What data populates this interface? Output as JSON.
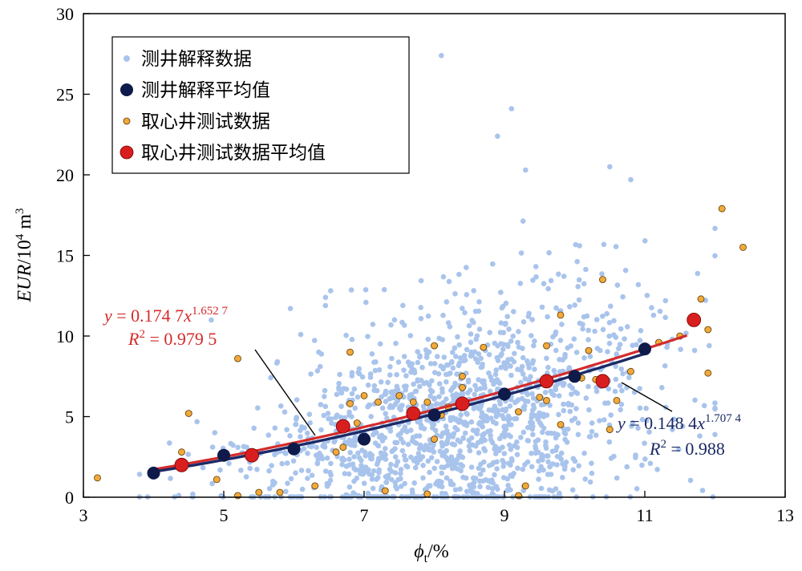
{
  "chart_data": {
    "type": "scatter",
    "xlabel_main": "ϕ",
    "xlabel_sub": "t",
    "xlabel_unit": "/%",
    "ylabel_main": "EUR",
    "ylabel_unit_pre": "/10",
    "ylabel_unit_exp": "4",
    "ylabel_unit_post": " m",
    "ylabel_unit_exp2": "3",
    "xlim": [
      3,
      13
    ],
    "ylim": [
      0,
      30
    ],
    "xticks": [
      3,
      5,
      7,
      9,
      11,
      13
    ],
    "yticks": [
      0,
      5,
      10,
      15,
      20,
      25,
      30
    ],
    "grid": false,
    "legend_position": "top-left",
    "legend": [
      {
        "label": "测井解释数据",
        "marker": "small-light-blue"
      },
      {
        "label": "测井解释平均值",
        "marker": "large-navy"
      },
      {
        "label": "取心井测试数据",
        "marker": "small-orange"
      },
      {
        "label": "取心井测试数据平均值",
        "marker": "large-red"
      }
    ],
    "colors": {
      "log_data": "#a9c4ec",
      "log_mean": "#0d1a4a",
      "core_data": "#f2a93b",
      "core_data_edge": "#5a3a00",
      "core_mean": "#d81e1e",
      "fit_log": "#1b2a66",
      "fit_core": "#d42b2b"
    },
    "series": [
      {
        "name": "测井解释平均值",
        "x": [
          4.0,
          5.0,
          6.0,
          7.0,
          8.0,
          9.0,
          10.0,
          11.0
        ],
        "y": [
          1.5,
          2.6,
          3.0,
          3.6,
          5.1,
          6.4,
          7.5,
          9.2
        ]
      },
      {
        "name": "取心井测试数据平均值",
        "x": [
          4.4,
          5.4,
          6.7,
          7.7,
          8.4,
          9.6,
          10.4,
          11.7
        ],
        "y": [
          2.0,
          2.6,
          4.4,
          5.2,
          5.8,
          7.2,
          7.2,
          11.0
        ]
      },
      {
        "name": "取心井测试数据",
        "x": [
          3.2,
          4.4,
          4.5,
          4.9,
          5.2,
          5.2,
          5.5,
          5.8,
          6.3,
          6.6,
          6.7,
          6.8,
          6.8,
          6.9,
          7.0,
          7.2,
          7.3,
          7.5,
          7.7,
          7.9,
          7.9,
          8.0,
          8.0,
          8.1,
          8.2,
          8.4,
          8.4,
          8.7,
          9.0,
          9.2,
          9.2,
          9.3,
          9.5,
          9.6,
          9.6,
          9.8,
          9.8,
          10.1,
          10.2,
          10.3,
          10.4,
          10.5,
          10.6,
          10.8,
          11.0,
          11.2,
          11.5,
          11.8,
          11.9,
          11.9,
          12.1,
          12.4
        ],
        "y": [
          1.2,
          2.8,
          5.2,
          1.1,
          8.6,
          0.1,
          0.3,
          0.3,
          0.7,
          2.8,
          3.1,
          9.0,
          5.8,
          4.6,
          6.3,
          5.9,
          0.4,
          6.3,
          5.9,
          5.9,
          0.2,
          9.4,
          3.6,
          5.1,
          5.6,
          7.5,
          6.8,
          9.3,
          6.2,
          5.3,
          0.1,
          0.7,
          6.2,
          9.4,
          6.0,
          4.5,
          11.3,
          7.4,
          9.1,
          7.3,
          13.5,
          4.2,
          6.0,
          7.8,
          9.3,
          9.6,
          10.0,
          12.3,
          10.4,
          7.7,
          17.9,
          15.5
        ]
      }
    ],
    "fits": [
      {
        "series": "取心井测试数据平均值",
        "coef": 0.1747,
        "exp": 1.6527,
        "x_range": [
          4.0,
          11.6
        ],
        "eq_y": "y",
        "eq_mid": " = 0.174 7",
        "eq_x": "x",
        "eq_exp": "1.652 7",
        "r2_r": "R",
        "r2_sup": "2",
        "r2_val": " = 0.979 5"
      },
      {
        "series": "测井解释平均值",
        "coef": 0.1484,
        "exp": 1.7074,
        "x_range": [
          4.0,
          11.0
        ],
        "eq_y": "y",
        "eq_mid": " = 0.148 4",
        "eq_x": "x",
        "eq_exp": "1.707 4",
        "r2_r": "R",
        "r2_sup": "2",
        "r2_val": " = 0.988"
      }
    ],
    "log_data_cloud": {
      "name": "测井解释数据",
      "count": 1500,
      "x_range": [
        3.8,
        12.0
      ],
      "y_range": [
        0,
        27.4
      ]
    }
  }
}
